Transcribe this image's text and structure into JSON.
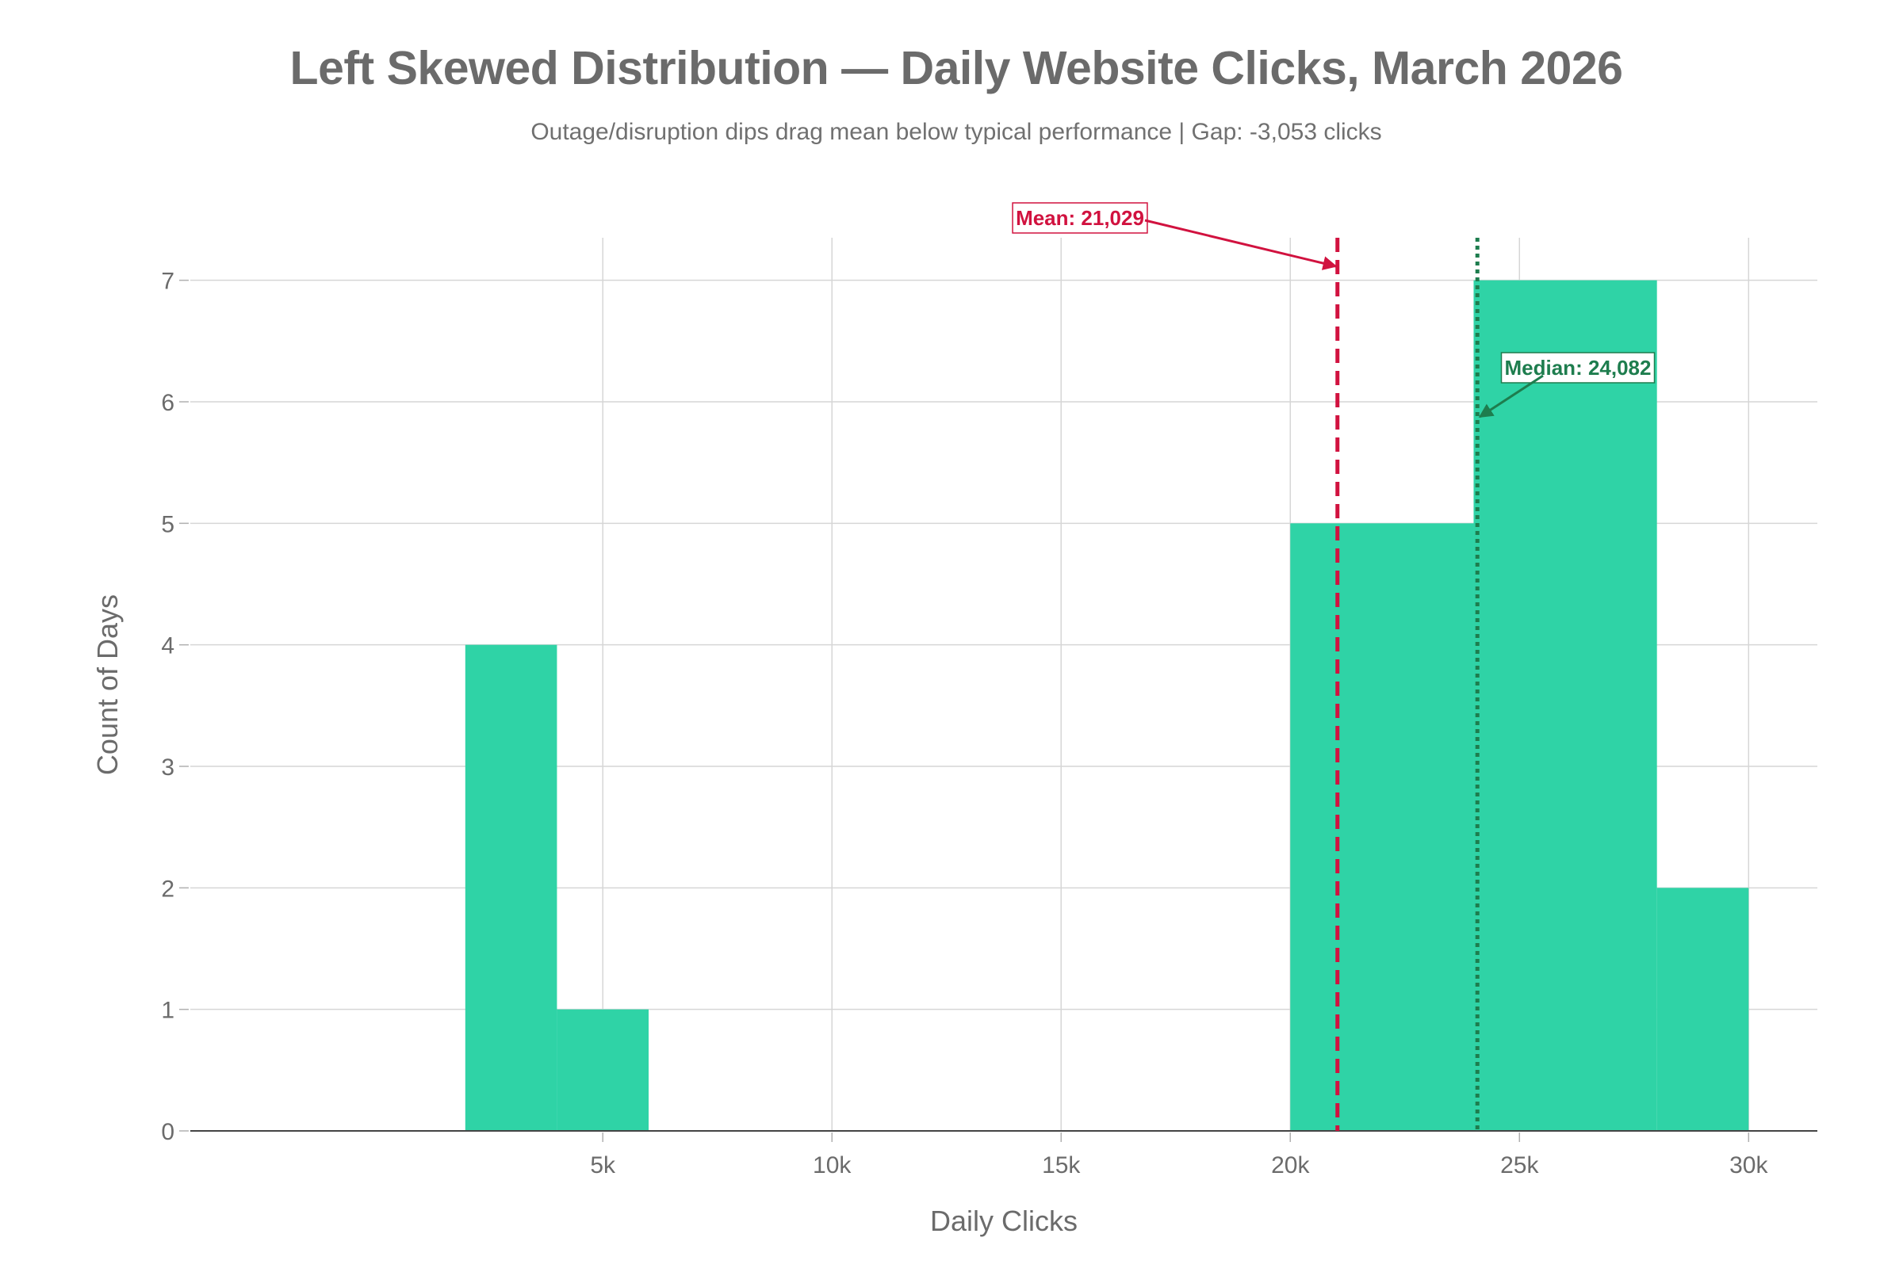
{
  "title": "Left Skewed Distribution — Daily Website Clicks, March 2026",
  "subtitle": "Outage/disruption dips drag mean below typical performance | Gap: -3,053 clicks",
  "chart_data": {
    "type": "bar",
    "title": "Left Skewed Distribution — Daily Website Clicks, March 2026",
    "subtitle": "Outage/disruption dips drag mean below typical performance | Gap: -3,053 clicks",
    "xlabel": "Daily Clicks",
    "ylabel": "Count of Days",
    "xlim": [
      -4000,
      31500
    ],
    "ylim": [
      0,
      7.35
    ],
    "x_ticks": [
      5000,
      10000,
      15000,
      20000,
      25000,
      30000
    ],
    "x_tick_labels": [
      "5k",
      "10k",
      "15k",
      "20k",
      "25k",
      "30k"
    ],
    "y_ticks": [
      0,
      1,
      2,
      3,
      4,
      5,
      6,
      7
    ],
    "y_tick_labels": [
      "0",
      "1",
      "2",
      "3",
      "4",
      "5",
      "6",
      "7"
    ],
    "bins": [
      {
        "x0": 2000,
        "x1": 4000,
        "count": 4
      },
      {
        "x0": 4000,
        "x1": 6000,
        "count": 1
      },
      {
        "x0": 20000,
        "x1": 24000,
        "count": 5
      },
      {
        "x0": 24000,
        "x1": 28000,
        "count": 7
      },
      {
        "x0": 28000,
        "x1": 30000,
        "count": 2
      }
    ],
    "grid": true,
    "bar_color": "#2fd3a6",
    "mean": {
      "value": 21029,
      "label": "Mean: 21,029",
      "color": "#d1123f",
      "style": "dashed"
    },
    "median": {
      "value": 24082,
      "label": "Median: 24,082",
      "color": "#1e7d4e",
      "style": "dotted"
    }
  }
}
